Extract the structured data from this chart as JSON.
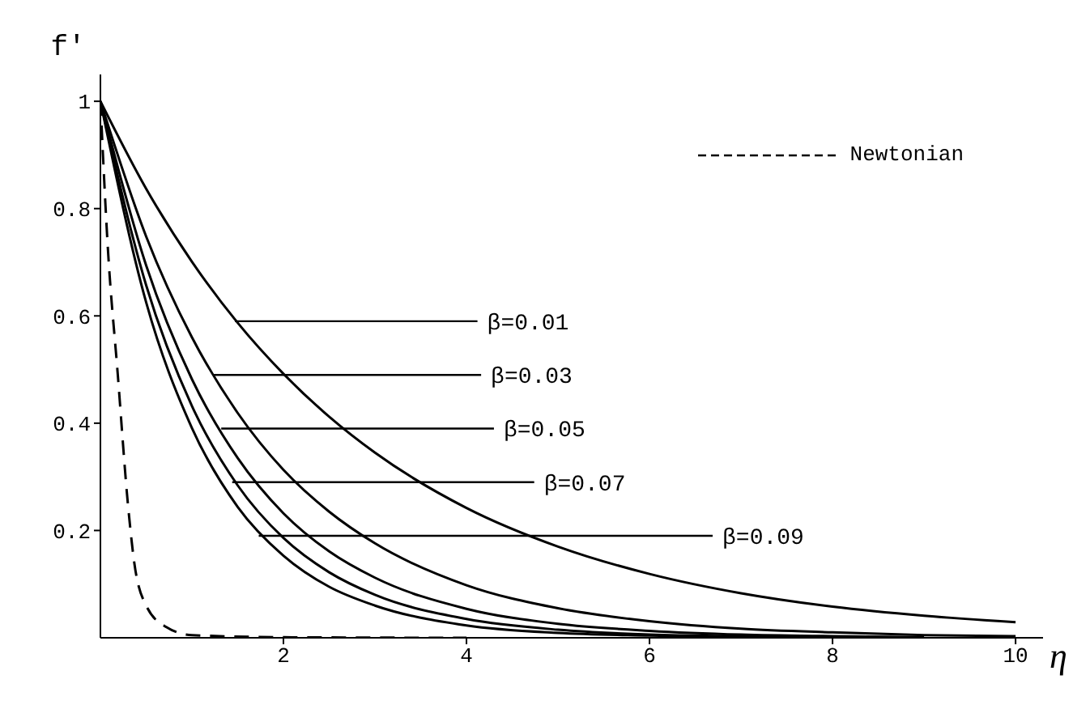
{
  "chart_data": {
    "type": "line",
    "xlabel": "η",
    "ylabel": "f′",
    "xlim": [
      0,
      10.3
    ],
    "ylim": [
      0,
      1.05
    ],
    "xticks": [
      2,
      4,
      6,
      8,
      10
    ],
    "yticks": [
      0.2,
      0.4,
      0.6,
      0.8,
      1
    ],
    "grid": false,
    "legend": "top right",
    "marker": "none",
    "line_style": "solid",
    "series": [
      {
        "color": "#000000",
        "x": [
          0,
          0.5,
          1,
          1.5,
          2,
          2.5,
          3,
          4,
          5,
          6,
          7,
          8,
          9,
          10
        ],
        "values": [
          1,
          0.837,
          0.701,
          0.587,
          0.492,
          0.412,
          0.345,
          0.242,
          0.17,
          0.119,
          0.083,
          0.058,
          0.041,
          0.029
        ]
      },
      {
        "color": "#000000",
        "x": [
          0,
          0.5,
          1,
          1.5,
          2,
          2.5,
          3,
          4,
          5,
          6,
          7,
          8,
          9,
          10
        ],
        "values": [
          1,
          0.748,
          0.56,
          0.419,
          0.313,
          0.235,
          0.176,
          0.098,
          0.055,
          0.031,
          0.017,
          0.01,
          0.005,
          0.003
        ]
      },
      {
        "color": "#000000",
        "x": [
          0,
          0.5,
          1,
          1.5,
          2,
          2.5,
          3,
          4,
          5,
          6,
          7,
          8,
          9
        ],
        "values": [
          1,
          0.694,
          0.482,
          0.335,
          0.232,
          0.161,
          0.112,
          0.054,
          0.026,
          0.013,
          0.006,
          0.003,
          0.001
        ]
      },
      {
        "color": "#000000",
        "x": [
          0,
          0.5,
          1,
          1.5,
          2,
          2.5,
          3,
          4,
          5,
          6,
          7,
          8
        ],
        "values": [
          1,
          0.657,
          0.432,
          0.284,
          0.186,
          0.122,
          0.08,
          0.035,
          0.015,
          0.006,
          0.003,
          0.001
        ]
      },
      {
        "color": "#000000",
        "x": [
          0,
          0.5,
          1,
          1.5,
          2,
          2.5,
          3,
          4,
          5,
          6,
          7
        ],
        "values": [
          1,
          0.625,
          0.391,
          0.244,
          0.153,
          0.095,
          0.06,
          0.023,
          0.009,
          0.004,
          0.001
        ]
      },
      {
        "name": "Newtonian",
        "color": "#000000",
        "line_style": "dashed",
        "x": [
          0,
          0.08,
          0.19,
          0.3,
          0.37,
          0.5,
          0.72,
          1,
          2,
          4
        ],
        "values": [
          1,
          0.73,
          0.49,
          0.25,
          0.14,
          0.06,
          0.02,
          0.005,
          0.001,
          0
        ]
      }
    ],
    "annotations": [
      {
        "text": "β=0.01",
        "x": 1.47,
        "y": 0.59
      },
      {
        "text": "β=0.03",
        "x": 1.24,
        "y": 0.49
      },
      {
        "text": "β=0.05",
        "x": 1.32,
        "y": 0.39
      },
      {
        "text": "β=0.07",
        "x": 1.44,
        "y": 0.29
      },
      {
        "text": "β=0.09",
        "x": 1.73,
        "y": 0.19
      }
    ]
  }
}
